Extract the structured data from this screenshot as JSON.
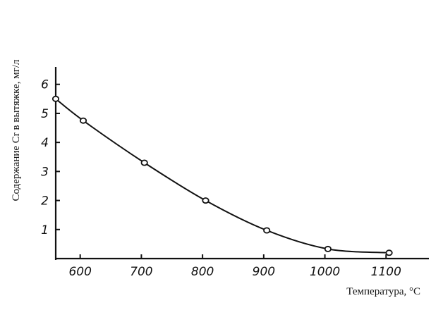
{
  "chart_data": {
    "type": "line",
    "title": "",
    "xlabel": "Температура, °C",
    "ylabel": "Содержание Cr в вытяжке, мг/л",
    "xlim": [
      560,
      1170
    ],
    "ylim": [
      0,
      6.6
    ],
    "x_ticks": [
      600,
      700,
      800,
      900,
      1000,
      1100
    ],
    "y_ticks": [
      1,
      2,
      3,
      4,
      5,
      6
    ],
    "grid": false,
    "series": [
      {
        "name": "",
        "marker": "open-circle",
        "x": [
          560,
          605,
          705,
          805,
          905,
          1005,
          1105
        ],
        "y": [
          5.5,
          4.75,
          3.3,
          2.0,
          0.97,
          0.33,
          0.2
        ]
      }
    ]
  }
}
